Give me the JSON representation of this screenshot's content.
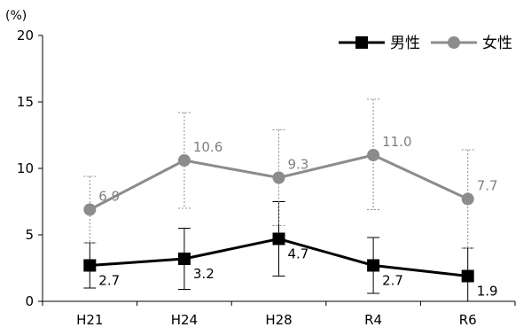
{
  "chart_data": {
    "type": "line",
    "unit_label": "(%)",
    "categories": [
      "H21",
      "H24",
      "H28",
      "R4",
      "R6"
    ],
    "ylim": [
      0,
      20
    ],
    "yticks": [
      0,
      5,
      10,
      15,
      20
    ],
    "grid": false,
    "legend_position": "top-right",
    "series": [
      {
        "name": "男性",
        "color": "#000000",
        "marker": "square",
        "values": [
          2.7,
          3.2,
          4.7,
          2.7,
          1.9
        ],
        "labels": [
          "2.7",
          "3.2",
          "4.7",
          "2.7",
          "1.9"
        ],
        "error_low": [
          1.0,
          0.9,
          1.9,
          0.6,
          0.0
        ],
        "error_high": [
          4.4,
          5.5,
          7.5,
          4.8,
          4.0
        ]
      },
      {
        "name": "女性",
        "color": "#8c8c8c",
        "marker": "circle",
        "values": [
          6.9,
          10.6,
          9.3,
          11.0,
          7.7
        ],
        "labels": [
          "6.9",
          "10.6",
          "9.3",
          "11.0",
          "7.7"
        ],
        "error_low": [
          4.4,
          7.0,
          5.7,
          6.9,
          4.0
        ],
        "error_high": [
          9.4,
          14.2,
          12.9,
          15.2,
          11.4
        ]
      }
    ]
  }
}
